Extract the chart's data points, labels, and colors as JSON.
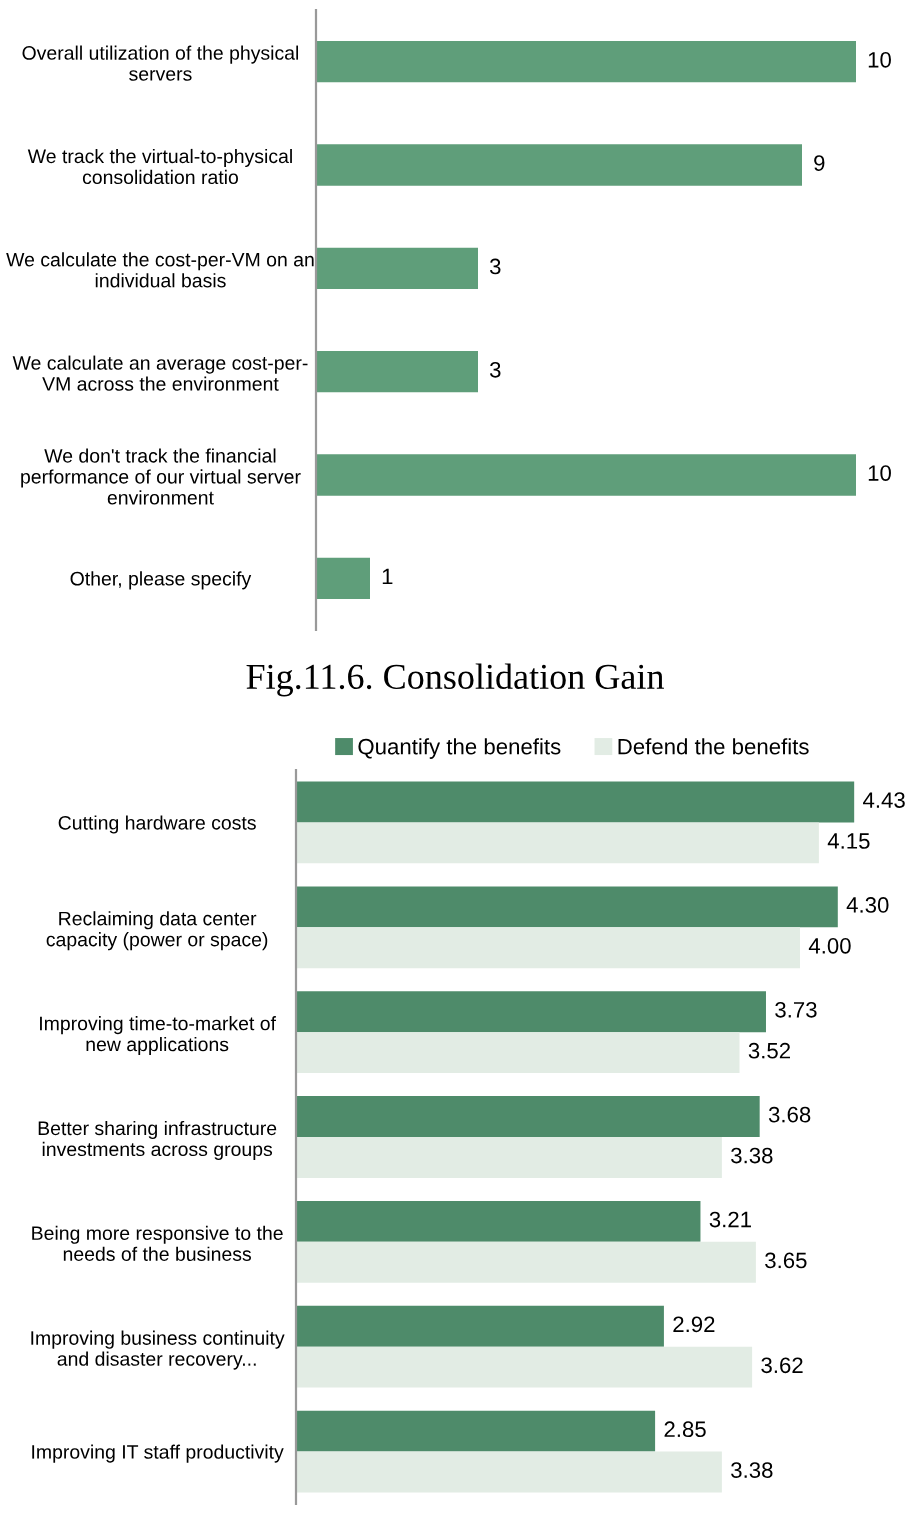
{
  "chart_data": [
    {
      "type": "bar",
      "orientation": "horizontal",
      "categories": [
        "Overall utilization of the physical\nservers",
        "We track the virtual-to-physical\nconsolidation ratio",
        "We calculate the cost-per-VM on an\nindividual basis",
        "We calculate an average cost-per-\nVM across the environment",
        "We don't track the financial\nperformance of our virtual server\nenvironment",
        "Other, please specify"
      ],
      "series": [
        {
          "color": "#5f9e7a",
          "values": [
            10,
            9,
            3,
            3,
            10,
            1
          ]
        }
      ],
      "data_labels": true,
      "grid": false,
      "legend": false,
      "annotations": [
        "Fig.11.6. Consolidation Gain"
      ]
    },
    {
      "type": "bar",
      "orientation": "horizontal",
      "categories": [
        "Cutting hardware costs",
        "Reclaiming data center\ncapacity (power or space)",
        "Improving time-to-market of\nnew applications",
        "Better sharing infrastructure\ninvestments across groups",
        "Being more responsive to the\nneeds of the business",
        "Improving business continuity\nand disaster recovery...",
        "Improving IT staff productivity"
      ],
      "series": [
        {
          "name": "Quantify the benefits",
          "color": "#4e8b6a",
          "values": [
            4.43,
            4.3,
            3.73,
            3.68,
            3.21,
            2.92,
            2.85
          ],
          "value_labels": [
            "4.43",
            "4.30",
            "3.73",
            "3.68",
            "3.21",
            "2.92",
            "2.85"
          ]
        },
        {
          "name": "Defend the benefits",
          "color": "#e2ece4",
          "values": [
            4.15,
            4.0,
            3.52,
            3.38,
            3.65,
            3.62,
            3.38
          ],
          "value_labels": [
            "4.15",
            "4.00",
            "3.52",
            "3.38",
            "3.65",
            "3.62",
            "3.38"
          ]
        }
      ],
      "grid": false,
      "legend": "top"
    }
  ]
}
